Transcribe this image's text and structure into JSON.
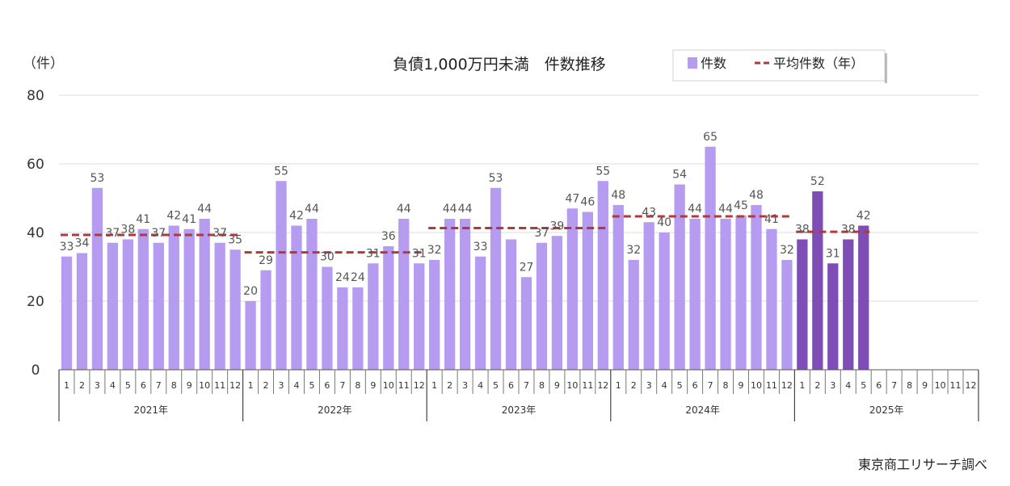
{
  "chart_data": {
    "type": "bar",
    "title": "負債1,000万円未満　件数推移",
    "ylabel": "（件）",
    "ylim": [
      0,
      80
    ],
    "yticks": [
      "0",
      "20",
      "40",
      "60",
      "80"
    ],
    "grid": true,
    "legend_position": "top-right",
    "legend": {
      "bar_label": "件数",
      "line_label": "平均件数（年）"
    },
    "month_labels": [
      "1",
      "2",
      "3",
      "4",
      "5",
      "6",
      "7",
      "8",
      "9",
      "10",
      "11",
      "12"
    ],
    "years": [
      {
        "label": "2021年",
        "values": [
          33,
          34,
          53,
          37,
          38,
          41,
          37,
          42,
          41,
          44,
          37,
          35
        ],
        "average": 39.3
      },
      {
        "label": "2022年",
        "values": [
          20,
          29,
          55,
          42,
          44,
          30,
          24,
          24,
          31,
          36,
          44,
          31
        ],
        "average": 34.2
      },
      {
        "label": "2023年",
        "values": [
          32,
          44,
          44,
          33,
          53,
          38,
          27,
          37,
          39,
          47,
          46,
          55
        ],
        "average": 41.3
      },
      {
        "label": "2024年",
        "values": [
          48,
          32,
          43,
          40,
          54,
          44,
          65,
          44,
          45,
          48,
          41,
          32
        ],
        "average": 44.7
      },
      {
        "label": "2025年",
        "values": [
          38,
          52,
          31,
          38,
          42
        ],
        "average": 40.2
      }
    ],
    "hidden_labels": [
      29
    ],
    "colors": {
      "bar": "#b69cf0",
      "bar_current": "#7e4db5",
      "average_line": "#b03a3a",
      "grid": "#dddddd"
    },
    "source": "東京商工リサーチ調べ"
  }
}
